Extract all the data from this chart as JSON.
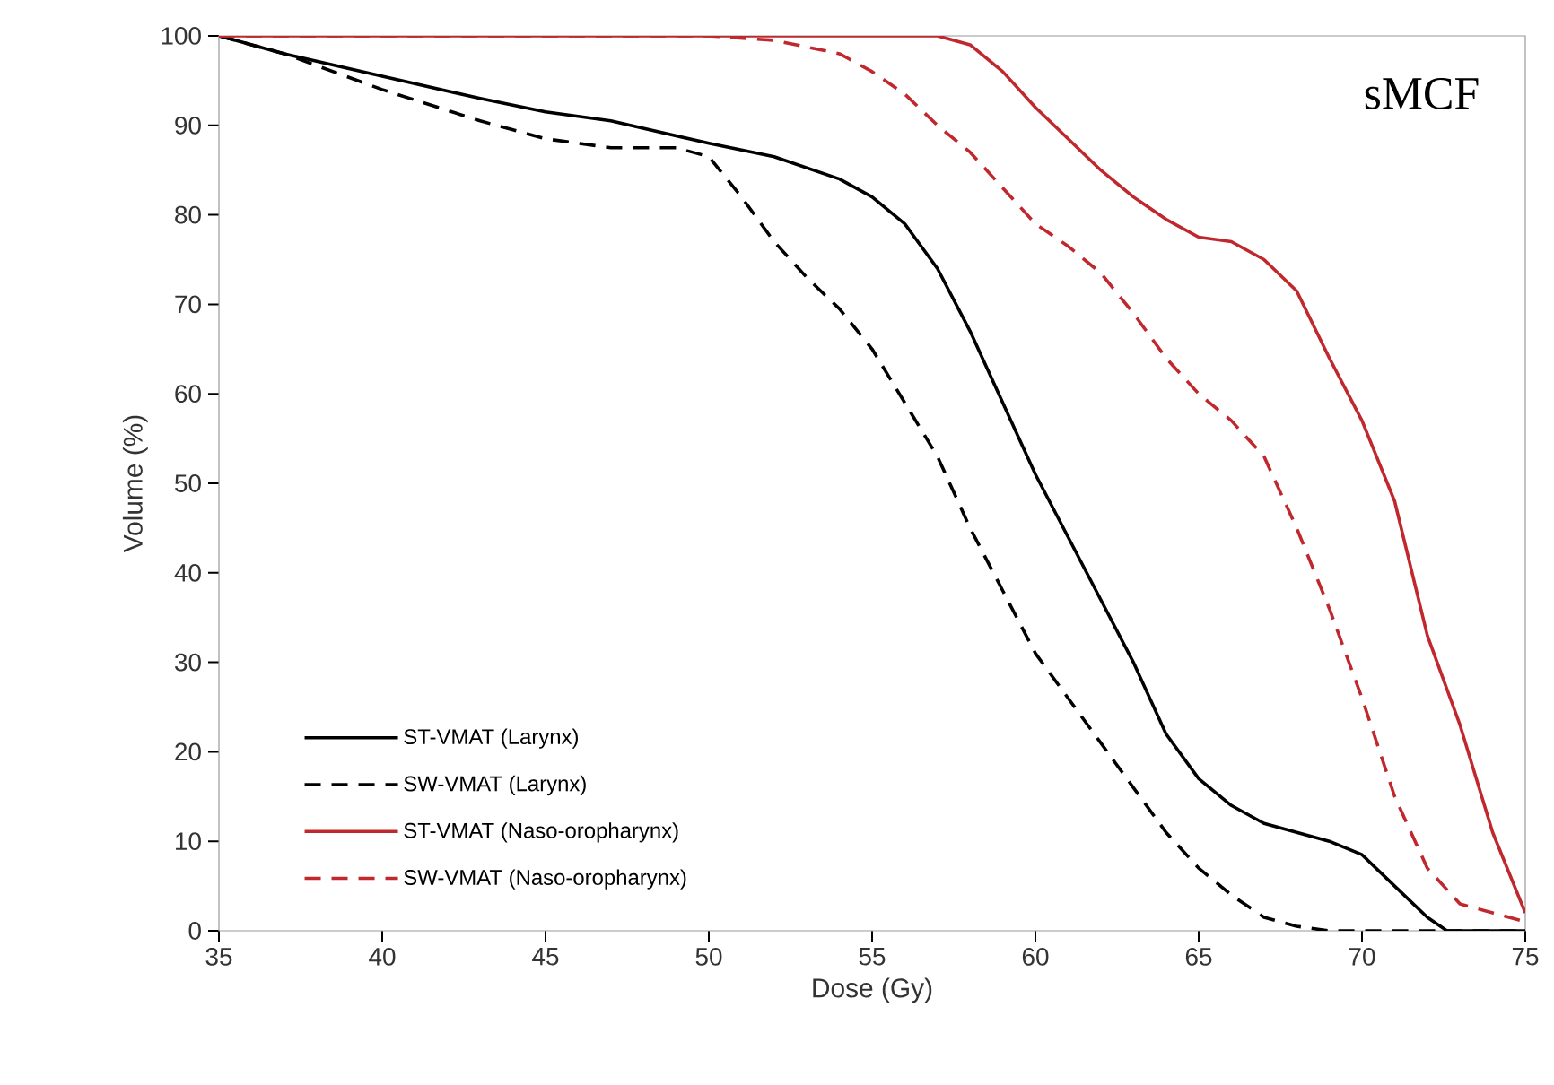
{
  "chart_data": {
    "type": "line",
    "xlabel": "Dose (Gy)",
    "ylabel": "Volume (%)",
    "annotations": [
      "sMCF"
    ],
    "xlim": [
      35,
      75
    ],
    "ylim": [
      0,
      100
    ],
    "xticks": [
      35,
      40,
      45,
      50,
      55,
      60,
      65,
      70,
      75
    ],
    "yticks": [
      0,
      10,
      20,
      30,
      40,
      50,
      60,
      70,
      80,
      90,
      100
    ],
    "legend": "bottom left",
    "grid": false,
    "series": [
      {
        "name": "ST-VMAT (Larynx)",
        "color": "#000000",
        "line_style": "solid",
        "x": [
          35,
          37,
          40,
          43,
          45,
          47,
          50,
          52,
          54,
          55,
          56,
          57,
          58,
          59,
          60,
          61,
          62,
          63,
          64,
          65,
          66,
          67,
          68,
          69,
          70,
          71,
          72,
          72.6,
          73,
          75
        ],
        "values": [
          100,
          98,
          95.5,
          93,
          91.5,
          90.5,
          88,
          86.5,
          84,
          82,
          79,
          74,
          67,
          59,
          51,
          44,
          37,
          30,
          22,
          17,
          14,
          12,
          11,
          10,
          8.5,
          5,
          1.5,
          0,
          0,
          0
        ]
      },
      {
        "name": "SW-VMAT (Larynx)",
        "color": "#000000",
        "line_style": "dashed",
        "x": [
          35,
          37,
          40,
          43,
          45,
          47,
          49,
          50,
          51,
          52,
          53,
          54,
          55,
          56,
          57,
          58,
          59,
          60,
          61,
          62,
          63,
          64,
          65,
          66,
          67,
          68,
          69,
          75
        ],
        "values": [
          100,
          98,
          94,
          90.5,
          88.5,
          87.5,
          87.5,
          86.5,
          82,
          77,
          73,
          69.5,
          65,
          59,
          53,
          45,
          38,
          31,
          26,
          21,
          16,
          11,
          7,
          4,
          1.5,
          0.5,
          0,
          0
        ]
      },
      {
        "name": "ST-VMAT (Naso-oropharynx)",
        "color": "#c0282d",
        "line_style": "solid",
        "x": [
          35,
          57,
          58,
          59,
          60,
          61,
          62,
          63,
          64,
          65,
          66,
          67,
          68,
          69,
          70,
          71,
          72,
          73,
          74,
          75
        ],
        "values": [
          100,
          100,
          99,
          96,
          92,
          88.5,
          85,
          82,
          79.5,
          77.5,
          77,
          75,
          71.5,
          64,
          57,
          48,
          33,
          23,
          11,
          2
        ]
      },
      {
        "name": "SW-VMAT (Naso-oropharynx)",
        "color": "#c0282d",
        "line_style": "dashed",
        "x": [
          35,
          50,
          52,
          54,
          55,
          56,
          57,
          58,
          59,
          60,
          61,
          62,
          63,
          64,
          65,
          66,
          67,
          68,
          69,
          70,
          71,
          72,
          73,
          74,
          75
        ],
        "values": [
          100,
          100,
          99.5,
          98,
          96,
          93.5,
          90,
          87,
          83,
          79,
          76.5,
          73.5,
          69,
          64,
          60,
          57,
          53,
          45,
          36,
          26,
          15,
          7,
          3,
          2,
          1
        ]
      }
    ]
  }
}
